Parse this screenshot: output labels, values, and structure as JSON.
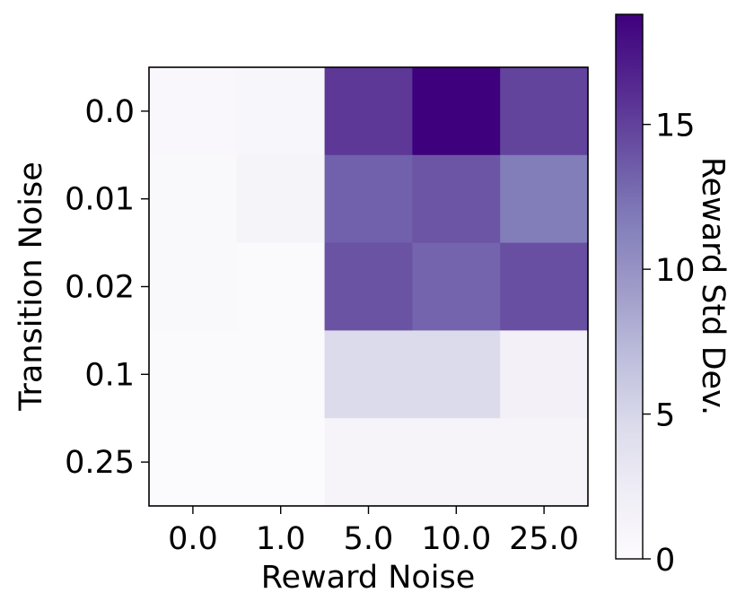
{
  "chart_data": {
    "type": "heatmap",
    "title": "",
    "xlabel": "Reward Noise",
    "ylabel": "Transition Noise",
    "x_categories": [
      "0.0",
      "1.0",
      "5.0",
      "10.0",
      "25.0"
    ],
    "y_categories": [
      "0.0",
      "0.01",
      "0.02",
      "0.1",
      "0.25"
    ],
    "values": [
      [
        0.6,
        0.9,
        15.5,
        18.8,
        14.8
      ],
      [
        0.5,
        1.2,
        13.3,
        13.9,
        11.7
      ],
      [
        0.5,
        0.4,
        14.0,
        13.1,
        14.2
      ],
      [
        0.4,
        0.3,
        4.6,
        4.6,
        1.7
      ],
      [
        0.2,
        0.2,
        1.1,
        1.1,
        1.1
      ]
    ],
    "colorbar": {
      "label": "Reward Std Dev.",
      "ticks": [
        "0",
        "5",
        "10",
        "15"
      ],
      "tick_values": [
        0,
        5,
        10,
        15
      ],
      "range": [
        0,
        18.8
      ],
      "colormap": "Purples",
      "color_low": "#fcfbfd",
      "color_high": "#3f007d"
    },
    "grid": false
  }
}
